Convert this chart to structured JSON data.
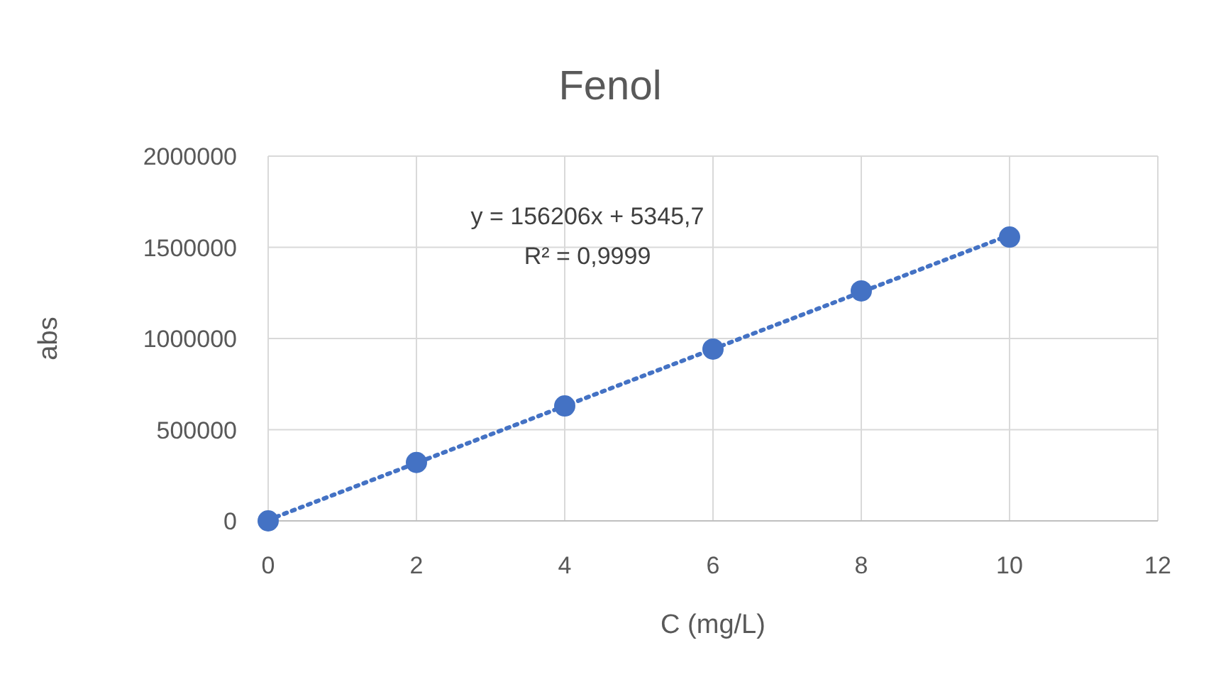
{
  "chart_data": {
    "type": "scatter",
    "title": "Fenol",
    "xlabel": "C (mg/L)",
    "ylabel": "abs",
    "xlim": [
      0,
      12
    ],
    "xticks": [
      0,
      2,
      4,
      6,
      8,
      10,
      12
    ],
    "ylim": [
      0,
      2000000
    ],
    "yticks": [
      0,
      500000,
      1000000,
      1500000,
      2000000
    ],
    "grid": true,
    "series": [
      {
        "color": "#4472c4",
        "marker": "circle",
        "x": [
          0,
          2,
          4,
          6,
          8,
          10
        ],
        "values": [
          0,
          320000,
          630000,
          942000,
          1261000,
          1556000
        ]
      },
      {
        "type": "line",
        "color": "#4472c4",
        "line_style": "dotted",
        "x": [
          0,
          10
        ],
        "values": [
          5000,
          1567000
        ]
      }
    ],
    "annotations": [
      "y = 156206x + 5345,7",
      "R² = 0,9999"
    ]
  }
}
